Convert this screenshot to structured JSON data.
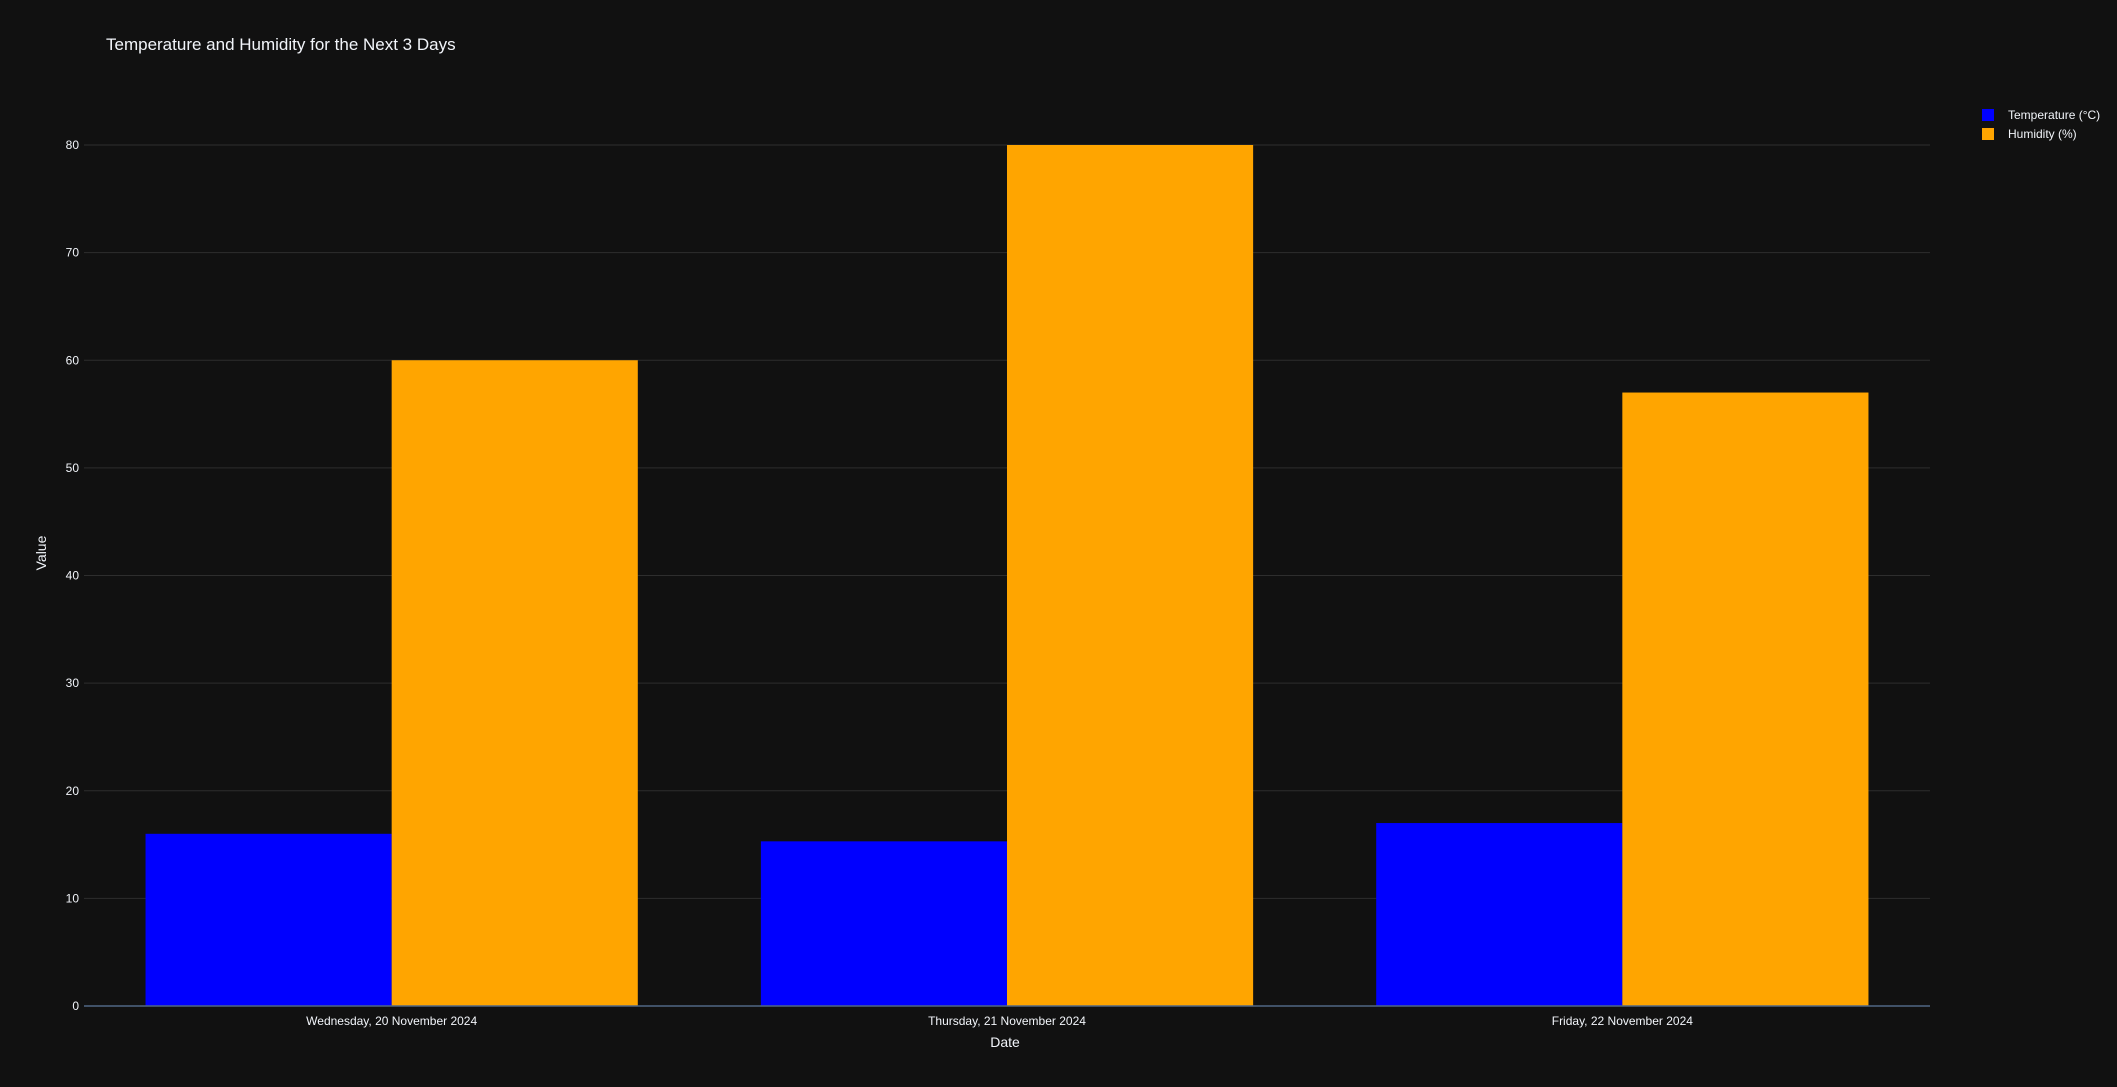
{
  "colors": {
    "background": "#111111",
    "grid": "#2e2e2e",
    "axis_line": "#506784",
    "text": "#f2f5fa",
    "temperature": "#0000ff",
    "humidity": "#ffa500"
  },
  "chart_data": {
    "type": "bar",
    "title": "Temperature and Humidity for the Next 3 Days",
    "xlabel": "Date",
    "ylabel": "Value",
    "ylim": [
      0,
      80
    ],
    "yticks": [
      0,
      10,
      20,
      30,
      40,
      50,
      60,
      70,
      80
    ],
    "grid": true,
    "legend_position": "top-right",
    "categories": [
      "Wednesday, 20 November 2024",
      "Thursday, 21 November 2024",
      "Friday, 22 November 2024"
    ],
    "series": [
      {
        "name": "Temperature (°C)",
        "color": "#0000ff",
        "values": [
          16,
          15.3,
          17
        ]
      },
      {
        "name": "Humidity (%)",
        "color": "#ffa500",
        "values": [
          60,
          80,
          57
        ]
      }
    ]
  }
}
